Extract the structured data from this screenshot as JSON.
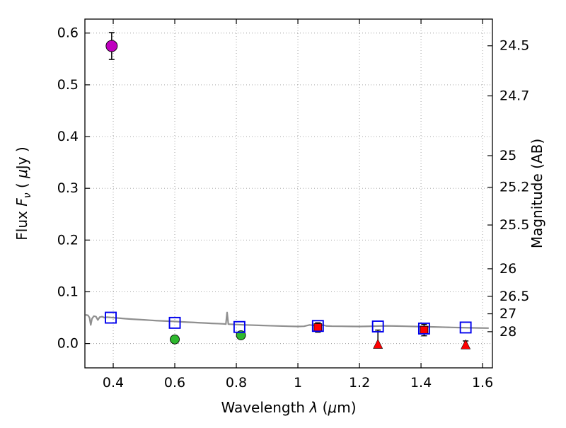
{
  "figure": {
    "background": "#ffffff",
    "axes_color": "#000000",
    "grid_color": "#9a9a9a"
  },
  "chart_data": {
    "type": "scatter",
    "title": "",
    "xlabel": "Wavelength λ (μm)",
    "xlabel_parts": [
      {
        "t": "Wavelength  "
      },
      {
        "t": "λ",
        "i": true
      },
      {
        "t": " ("
      },
      {
        "t": "μ",
        "i": true
      },
      {
        "t": "m)"
      }
    ],
    "ylabel_left": "Flux Fν ( μJy )",
    "ylabel_left_parts": [
      {
        "t": "Flux  "
      },
      {
        "t": "F",
        "i": true
      },
      {
        "t": "ν",
        "i": true,
        "sub": true
      },
      {
        "t": "  ( "
      },
      {
        "t": "μ",
        "i": true
      },
      {
        "t": "Jy )"
      }
    ],
    "ylabel_right": "Magnitude (AB)",
    "xlim": [
      0.308,
      1.632
    ],
    "ylim": [
      -0.047,
      0.627
    ],
    "grid": true,
    "x_ticks": [
      {
        "value": 0.4,
        "label": "0.4"
      },
      {
        "value": 0.6,
        "label": "0.6"
      },
      {
        "value": 0.8,
        "label": "0.8"
      },
      {
        "value": 1.0,
        "label": "1"
      },
      {
        "value": 1.2,
        "label": "1.2"
      },
      {
        "value": 1.4,
        "label": "1.4"
      },
      {
        "value": 1.6,
        "label": "1.6"
      }
    ],
    "y_ticks_left": [
      {
        "value": 0.0,
        "label": "0.0"
      },
      {
        "value": 0.1,
        "label": "0.1"
      },
      {
        "value": 0.2,
        "label": "0.2"
      },
      {
        "value": 0.3,
        "label": "0.3"
      },
      {
        "value": 0.4,
        "label": "0.4"
      },
      {
        "value": 0.5,
        "label": "0.5"
      },
      {
        "value": 0.6,
        "label": "0.6"
      }
    ],
    "y_ticks_right": [
      {
        "flux": 0.5754,
        "label": "24.5"
      },
      {
        "flux": 0.4786,
        "label": "24.7"
      },
      {
        "flux": 0.3631,
        "label": "25"
      },
      {
        "flux": 0.302,
        "label": "25.2"
      },
      {
        "flux": 0.2291,
        "label": "25.5"
      },
      {
        "flux": 0.1445,
        "label": "26"
      },
      {
        "flux": 0.0912,
        "label": "26.5"
      },
      {
        "flux": 0.0575,
        "label": "27"
      },
      {
        "flux": 0.0229,
        "label": "28"
      }
    ],
    "series": [
      {
        "name": "model-spectrum",
        "type": "line",
        "color": "#8f8f8f",
        "line_width": 2.2,
        "points": [
          [
            0.31,
            0.0555
          ],
          [
            0.318,
            0.0545
          ],
          [
            0.323,
            0.05
          ],
          [
            0.327,
            0.036
          ],
          [
            0.331,
            0.048
          ],
          [
            0.337,
            0.053
          ],
          [
            0.344,
            0.052
          ],
          [
            0.35,
            0.0455
          ],
          [
            0.356,
            0.051
          ],
          [
            0.364,
            0.052
          ],
          [
            0.372,
            0.05
          ],
          [
            0.38,
            0.051
          ],
          [
            0.39,
            0.0505
          ],
          [
            0.4,
            0.05
          ],
          [
            0.42,
            0.049
          ],
          [
            0.44,
            0.048
          ],
          [
            0.46,
            0.0472
          ],
          [
            0.48,
            0.0465
          ],
          [
            0.5,
            0.0458
          ],
          [
            0.52,
            0.045
          ],
          [
            0.54,
            0.0443
          ],
          [
            0.56,
            0.0437
          ],
          [
            0.58,
            0.0432
          ],
          [
            0.6,
            0.0427
          ],
          [
            0.62,
            0.042
          ],
          [
            0.64,
            0.0414
          ],
          [
            0.66,
            0.0408
          ],
          [
            0.68,
            0.0402
          ],
          [
            0.7,
            0.0396
          ],
          [
            0.72,
            0.039
          ],
          [
            0.74,
            0.0385
          ],
          [
            0.758,
            0.038
          ],
          [
            0.766,
            0.0376
          ],
          [
            0.77,
            0.06
          ],
          [
            0.774,
            0.0375
          ],
          [
            0.79,
            0.037
          ],
          [
            0.81,
            0.0365
          ],
          [
            0.83,
            0.036
          ],
          [
            0.85,
            0.0356
          ],
          [
            0.88,
            0.035
          ],
          [
            0.91,
            0.0344
          ],
          [
            0.94,
            0.0339
          ],
          [
            0.97,
            0.0334
          ],
          [
            1.0,
            0.033
          ],
          [
            1.02,
            0.0334
          ],
          [
            1.038,
            0.036
          ],
          [
            1.05,
            0.0352
          ],
          [
            1.06,
            0.034
          ],
          [
            1.072,
            0.0346
          ],
          [
            1.082,
            0.0358
          ],
          [
            1.092,
            0.034
          ],
          [
            1.11,
            0.0336
          ],
          [
            1.14,
            0.0334
          ],
          [
            1.17,
            0.0331
          ],
          [
            1.2,
            0.033
          ],
          [
            1.23,
            0.0333
          ],
          [
            1.26,
            0.0338
          ],
          [
            1.29,
            0.0342
          ],
          [
            1.32,
            0.0338
          ],
          [
            1.35,
            0.0334
          ],
          [
            1.38,
            0.033
          ],
          [
            1.41,
            0.0326
          ],
          [
            1.44,
            0.0321
          ],
          [
            1.47,
            0.0317
          ],
          [
            1.5,
            0.0312
          ],
          [
            1.53,
            0.0308
          ],
          [
            1.56,
            0.0304
          ],
          [
            1.59,
            0.0301
          ],
          [
            1.62,
            0.0298
          ]
        ]
      },
      {
        "name": "upper-limits",
        "type": "scatter",
        "marker": "triangle-up",
        "color": "#ff0000",
        "size": 13,
        "points": [
          {
            "x": 1.26,
            "y": -0.002,
            "err_hi": 0.028
          },
          {
            "x": 1.545,
            "y": -0.003,
            "err_hi": 0.008
          }
        ]
      },
      {
        "name": "detections-red",
        "type": "scatter",
        "marker": "square",
        "color": "#ff0000",
        "size": 11,
        "points": [
          {
            "x": 1.065,
            "y": 0.031,
            "err_lo": 0.009,
            "err_hi": 0.009
          },
          {
            "x": 1.41,
            "y": 0.026,
            "err_lo": 0.011,
            "err_hi": 0.011
          }
        ]
      },
      {
        "name": "detections-green",
        "type": "scatter",
        "marker": "circle",
        "color": "#2eb82e",
        "size": 13,
        "points": [
          {
            "x": 0.6,
            "y": 0.008,
            "err_lo": 0.007,
            "err_hi": 0.007
          },
          {
            "x": 0.815,
            "y": 0.016,
            "err_lo": 0.006,
            "err_hi": 0.006
          }
        ]
      },
      {
        "name": "detection-magenta",
        "type": "scatter",
        "marker": "circle",
        "color": "#bf00bf",
        "size": 16,
        "points": [
          {
            "x": 0.395,
            "y": 0.575,
            "err_lo": 0.026,
            "err_hi": 0.026
          }
        ]
      },
      {
        "name": "model-photometry",
        "type": "scatter",
        "marker": "square-open",
        "color": "#0000ee",
        "size": 15,
        "points": [
          {
            "x": 0.392,
            "y": 0.05
          },
          {
            "x": 0.6,
            "y": 0.04
          },
          {
            "x": 0.81,
            "y": 0.032
          },
          {
            "x": 1.065,
            "y": 0.034
          },
          {
            "x": 1.26,
            "y": 0.033
          },
          {
            "x": 1.41,
            "y": 0.029
          },
          {
            "x": 1.545,
            "y": 0.031
          }
        ]
      }
    ]
  }
}
